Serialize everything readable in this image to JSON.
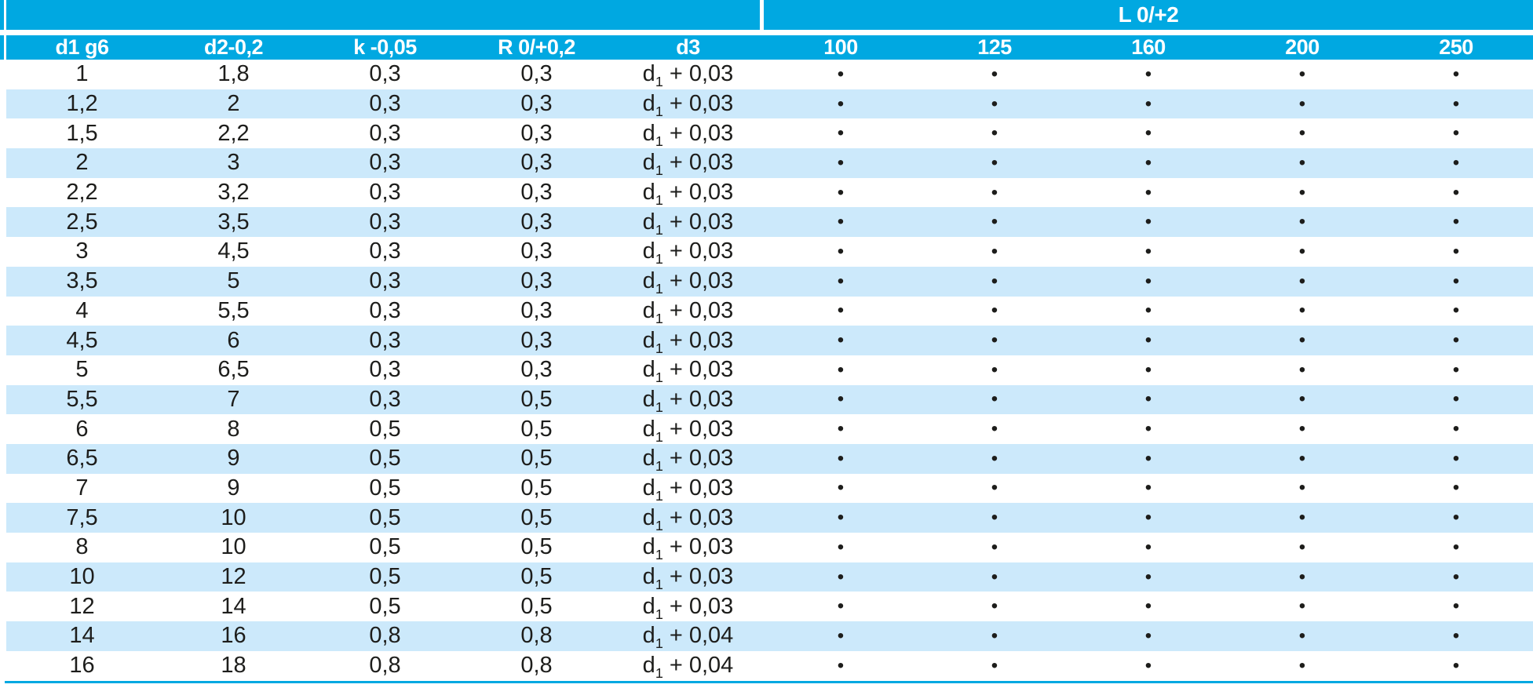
{
  "colors": {
    "header_cyan": "#00a8e1",
    "row_light_blue": "#cce9fb",
    "text_ink": "#1d1d1b"
  },
  "table": {
    "l_group_label": "L 0/+2",
    "columns": [
      "d1 g6",
      "d2-0,2",
      "k -0,05",
      "R 0/+0,2",
      "d3",
      "100",
      "125",
      "160",
      "200",
      "250"
    ],
    "l_columns": [
      "100",
      "125",
      "160",
      "200",
      "250"
    ],
    "bullet_glyph": "•",
    "rows": [
      {
        "d1": "1",
        "d2": "1,8",
        "k": "0,3",
        "r": "0,3",
        "d3": "d1 + 0,03",
        "l": [
          true,
          true,
          true,
          true,
          true
        ]
      },
      {
        "d1": "1,2",
        "d2": "2",
        "k": "0,3",
        "r": "0,3",
        "d3": "d1 + 0,03",
        "l": [
          true,
          true,
          true,
          true,
          true
        ]
      },
      {
        "d1": "1,5",
        "d2": "2,2",
        "k": "0,3",
        "r": "0,3",
        "d3": "d1 + 0,03",
        "l": [
          true,
          true,
          true,
          true,
          true
        ]
      },
      {
        "d1": "2",
        "d2": "3",
        "k": "0,3",
        "r": "0,3",
        "d3": "d1 + 0,03",
        "l": [
          true,
          true,
          true,
          true,
          true
        ]
      },
      {
        "d1": "2,2",
        "d2": "3,2",
        "k": "0,3",
        "r": "0,3",
        "d3": "d1 + 0,03",
        "l": [
          true,
          true,
          true,
          true,
          true
        ]
      },
      {
        "d1": "2,5",
        "d2": "3,5",
        "k": "0,3",
        "r": "0,3",
        "d3": "d1 + 0,03",
        "l": [
          true,
          true,
          true,
          true,
          true
        ]
      },
      {
        "d1": "3",
        "d2": "4,5",
        "k": "0,3",
        "r": "0,3",
        "d3": "d1 + 0,03",
        "l": [
          true,
          true,
          true,
          true,
          true
        ]
      },
      {
        "d1": "3,5",
        "d2": "5",
        "k": "0,3",
        "r": "0,3",
        "d3": "d1 + 0,03",
        "l": [
          true,
          true,
          true,
          true,
          true
        ]
      },
      {
        "d1": "4",
        "d2": "5,5",
        "k": "0,3",
        "r": "0,3",
        "d3": "d1 + 0,03",
        "l": [
          true,
          true,
          true,
          true,
          true
        ]
      },
      {
        "d1": "4,5",
        "d2": "6",
        "k": "0,3",
        "r": "0,3",
        "d3": "d1 + 0,03",
        "l": [
          true,
          true,
          true,
          true,
          true
        ]
      },
      {
        "d1": "5",
        "d2": "6,5",
        "k": "0,3",
        "r": "0,3",
        "d3": "d1 + 0,03",
        "l": [
          true,
          true,
          true,
          true,
          true
        ]
      },
      {
        "d1": "5,5",
        "d2": "7",
        "k": "0,3",
        "r": "0,5",
        "d3": "d1 + 0,03",
        "l": [
          true,
          true,
          true,
          true,
          true
        ]
      },
      {
        "d1": "6",
        "d2": "8",
        "k": "0,5",
        "r": "0,5",
        "d3": "d1 + 0,03",
        "l": [
          true,
          true,
          true,
          true,
          true
        ]
      },
      {
        "d1": "6,5",
        "d2": "9",
        "k": "0,5",
        "r": "0,5",
        "d3": "d1 + 0,03",
        "l": [
          true,
          true,
          true,
          true,
          true
        ]
      },
      {
        "d1": "7",
        "d2": "9",
        "k": "0,5",
        "r": "0,5",
        "d3": "d1 + 0,03",
        "l": [
          true,
          true,
          true,
          true,
          true
        ]
      },
      {
        "d1": "7,5",
        "d2": "10",
        "k": "0,5",
        "r": "0,5",
        "d3": "d1 + 0,03",
        "l": [
          true,
          true,
          true,
          true,
          true
        ]
      },
      {
        "d1": "8",
        "d2": "10",
        "k": "0,5",
        "r": "0,5",
        "d3": "d1 + 0,03",
        "l": [
          true,
          true,
          true,
          true,
          true
        ]
      },
      {
        "d1": "10",
        "d2": "12",
        "k": "0,5",
        "r": "0,5",
        "d3": "d1 + 0,03",
        "l": [
          true,
          true,
          true,
          true,
          true
        ]
      },
      {
        "d1": "12",
        "d2": "14",
        "k": "0,5",
        "r": "0,5",
        "d3": "d1 + 0,03",
        "l": [
          true,
          true,
          true,
          true,
          true
        ]
      },
      {
        "d1": "14",
        "d2": "16",
        "k": "0,8",
        "r": "0,8",
        "d3": "d1 + 0,04",
        "l": [
          true,
          true,
          true,
          true,
          true
        ]
      },
      {
        "d1": "16",
        "d2": "18",
        "k": "0,8",
        "r": "0,8",
        "d3": "d1 + 0,04",
        "l": [
          true,
          true,
          true,
          true,
          true
        ]
      }
    ]
  }
}
